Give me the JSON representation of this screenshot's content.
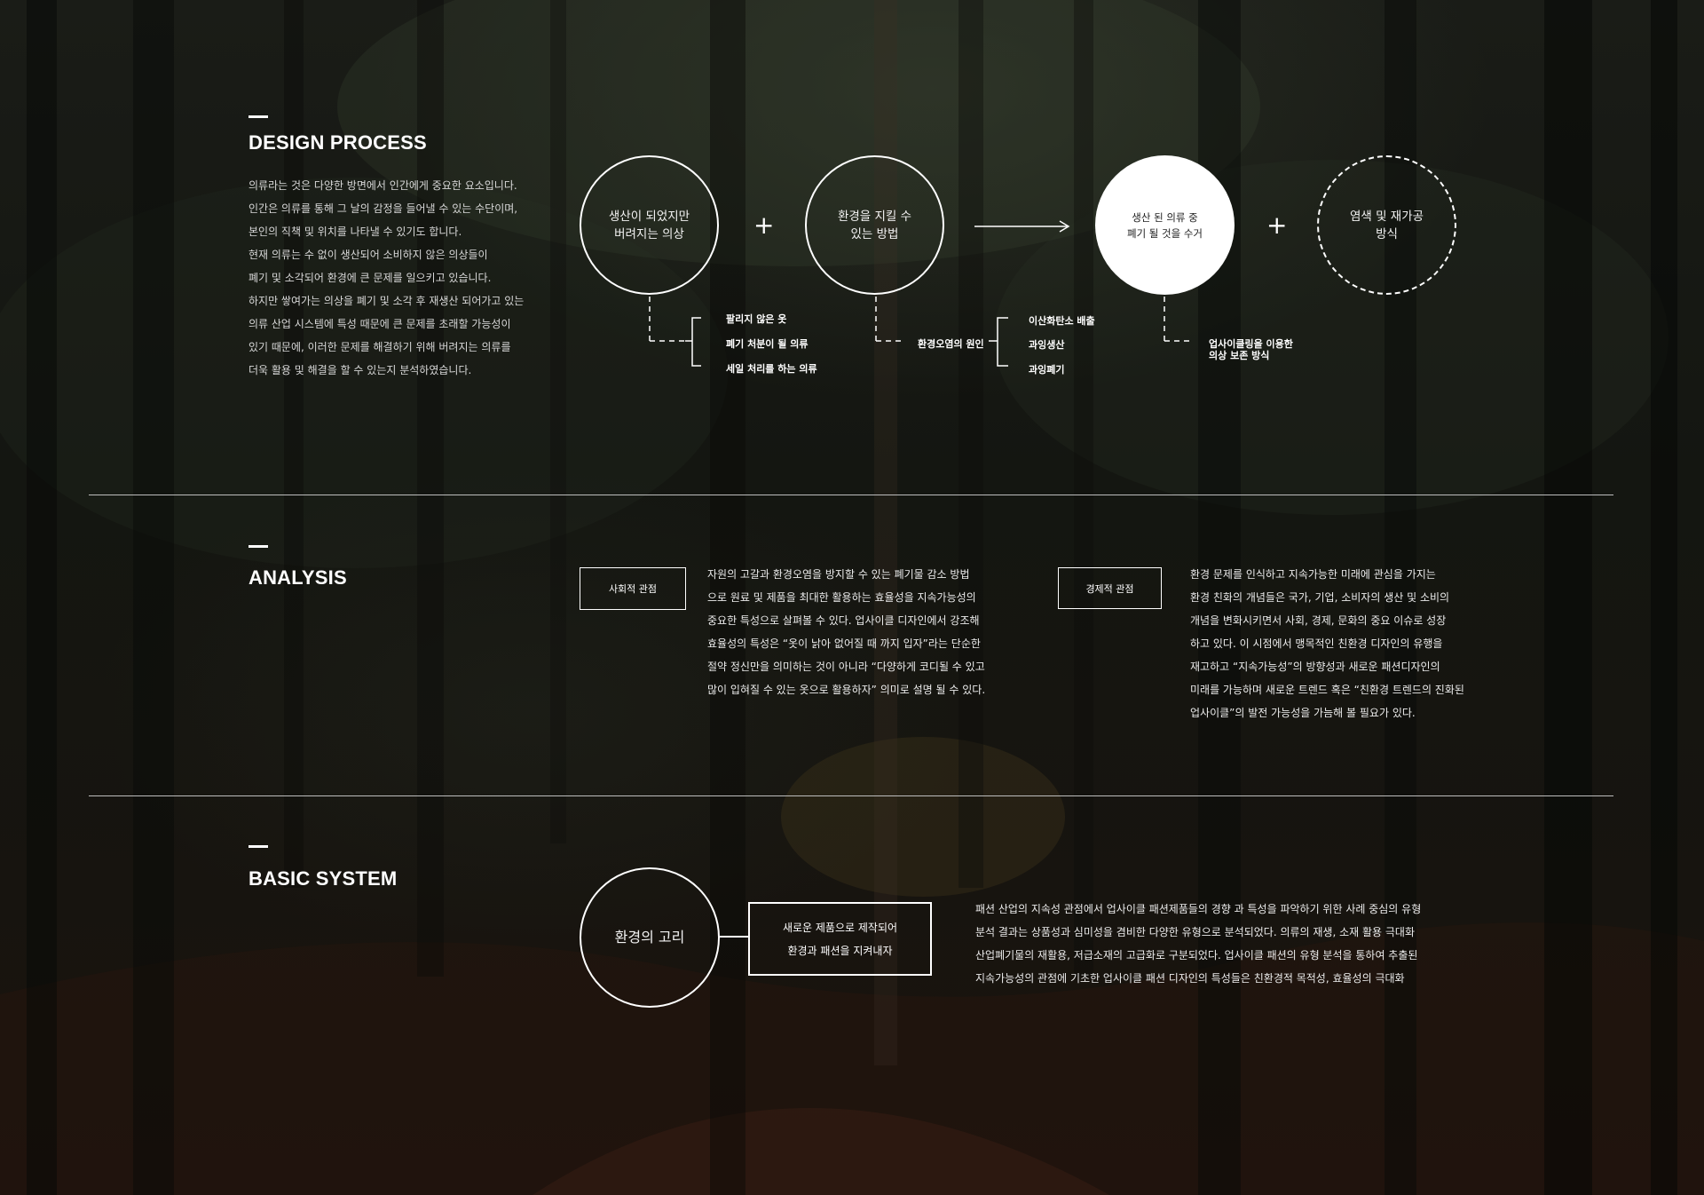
{
  "design_process": {
    "title": "DESIGN PROCESS",
    "intro_lines": [
      "의류라는 것은 다양한 방면에서 인간에게 중요한 요소입니다.",
      "인간은 의류를 통해 그 날의 감정을 들어낼 수 있는 수단이며,",
      "본인의 직책 및 위치를 나타낼 수 있기도 합니다.",
      "현재 의류는 수 없이 생산되어 소비하지 않은 의상들이",
      "폐기 및 소각되어 환경에 큰 문제를 일으키고 있습니다.",
      "하지만 쌓여가는 의상을 폐기 및 소각 후 재생산 되어가고 있는",
      "의류 산업 시스템에 특성 때문에 큰 문제를 초래할 가능성이",
      "있기 때문에, 이러한 문제를 해결하기 위해 버려지는 의류를",
      "더욱 활용 및 해결을 할 수 있는지 분석하였습니다."
    ],
    "nodes": [
      {
        "label": "생산이 되었지만\n버려지는 의상",
        "style": "outline"
      },
      {
        "label": "환경을 지킬 수\n있는 방법",
        "style": "outline"
      },
      {
        "label": "생산 된 의류 중\n폐기 될 것을 수거",
        "style": "filled"
      },
      {
        "label": "염색 및 재가공\n방식",
        "style": "dashed"
      }
    ],
    "operators": [
      "+",
      "+"
    ],
    "branches": {
      "node1": [
        "팔리지 않은 옷",
        "폐기 처분이 될 의류",
        "세일 처리를 하는 의류"
      ],
      "node2_label": "환경오염의 원인",
      "node2_items": [
        "이산화탄소 배출",
        "과잉생산",
        "과잉폐기"
      ],
      "node3": "업사이클링을 이용한\n의상 보존 방식"
    }
  },
  "analysis": {
    "title": "ANALYSIS",
    "social": {
      "label": "사회적 관점",
      "lines": [
        "자원의 고갈과 환경오염을 방지할 수 있는 폐기물 감소 방법",
        "으로 원료 및 제품을 최대한 활용하는 효율성을 지속가능성의",
        "중요한 특성으로 살펴볼 수 있다. 업사이클 디자인에서 강조해",
        "효율성의 특성은 “옷이 낡아 없어질 때 까지 입자”라는 단순한",
        "절약 정신만을 의미하는 것이 아니라 “다양하게 코디될 수 있고",
        "많이 입혀질 수 있는 옷으로 활용하자” 의미로 설명 될 수 있다."
      ]
    },
    "economic": {
      "label": "경제적 관점",
      "lines": [
        "환경 문제를 인식하고 지속가능한 미래에 관심을 가지는",
        "환경 친화의 개념들은 국가, 기업, 소비자의 생산 및 소비의",
        "개념을 변화시키면서 사회, 경제, 문화의 중요 이슈로 성장",
        "하고 있다. 이 시점에서 맹목적인 친환경 디자인의 유행을",
        "재고하고 “지속가능성”의 방향성과 새로운 패션디자인의",
        "미래를 가능하며 새로운 트렌드 혹은 “친환경 트렌드의 진화된",
        "업사이클”의 발전 가능성을 가늠해 볼 필요가 있다."
      ]
    }
  },
  "basic_system": {
    "title": "BASIC SYSTEM",
    "circle_label": "환경의 고리",
    "box_label": "새로운 제품으로 제작되어\n환경과 패션을 지켜내자",
    "lines": [
      "패션 산업의 지속성 관점에서 업사이클 패션제품들의 경향 과 특성을 파악하기 위한 사례 중심의 유형",
      "분석 결과는 상품성과 심미성을 겸비한 다양한 유형으로 분석되었다. 의류의 재생, 소재 활용 극대화",
      "산업폐기물의 재활용, 저급소재의 고급화로 구분되었다. 업사이클 패션의 유형 분석을 통하여 추출된",
      "지속가능성의 관점에 기초한 업사이클 패션 디자인의 특성들은 친환경적 목적성, 효율성의 극대화"
    ]
  }
}
